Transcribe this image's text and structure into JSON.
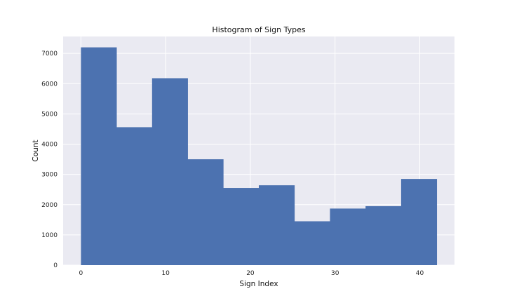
{
  "chart_data": {
    "type": "bar",
    "title": "Histogram of Sign Types",
    "xlabel": "Sign Index",
    "ylabel": "Count",
    "xlim": [
      -2.1,
      44.1
    ],
    "ylim": [
      0,
      7560
    ],
    "xticks": [
      0,
      10,
      20,
      30,
      40
    ],
    "yticks": [
      0,
      1000,
      2000,
      3000,
      4000,
      5000,
      6000,
      7000
    ],
    "bin_edges": [
      0,
      4.2,
      8.4,
      12.6,
      16.8,
      21,
      25.2,
      29.4,
      33.6,
      37.8,
      42
    ],
    "values": [
      7200,
      4560,
      6180,
      3500,
      2550,
      2640,
      1450,
      1870,
      1950,
      2850
    ],
    "grid": true,
    "colors": {
      "bar": "#4c72b0",
      "plot_background": "#eaeaf2",
      "grid": "#ffffff"
    }
  }
}
